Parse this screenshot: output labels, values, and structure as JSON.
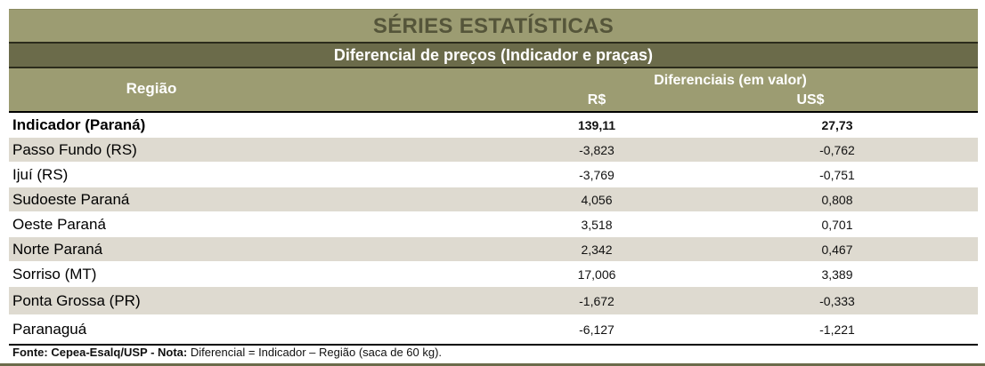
{
  "header": {
    "title": "SÉRIES ESTATÍSTICAS",
    "subtitle": "Diferencial de preços (Indicador e praças)",
    "col_region": "Região",
    "col_diff_group": "Diferenciais (em valor)",
    "col_brl": "R$",
    "col_usd": "US$"
  },
  "rows": [
    {
      "region": "Indicador (Paraná)",
      "brl": "139,11",
      "usd": "27,73"
    },
    {
      "region": "Passo Fundo (RS)",
      "brl": "-3,823",
      "usd": "-0,762"
    },
    {
      "region": "Ijuí (RS)",
      "brl": "-3,769",
      "usd": "-0,751"
    },
    {
      "region": "Sudoeste Paraná",
      "brl": "4,056",
      "usd": "0,808"
    },
    {
      "region": "Oeste Paraná",
      "brl": "3,518",
      "usd": "0,701"
    },
    {
      "region": "Norte Paraná",
      "brl": "2,342",
      "usd": "0,467"
    },
    {
      "region": "Sorriso (MT)",
      "brl": "17,006",
      "usd": "3,389"
    },
    {
      "region": "Ponta Grossa (PR)",
      "brl": "-1,672",
      "usd": "-0,333"
    },
    {
      "region": "Paranaguá",
      "brl": "-6,127",
      "usd": "-1,221"
    }
  ],
  "footer": {
    "source_label": "Fonte: Cepea-Esalq/USP - Nota:",
    "note": " Diferencial = Indicador – Região (saca de 60 kg)."
  },
  "colors": {
    "header_bg": "#9c9c72",
    "subtitle_bg": "#6b6b4a",
    "alt_row_bg": "#dedad0"
  }
}
